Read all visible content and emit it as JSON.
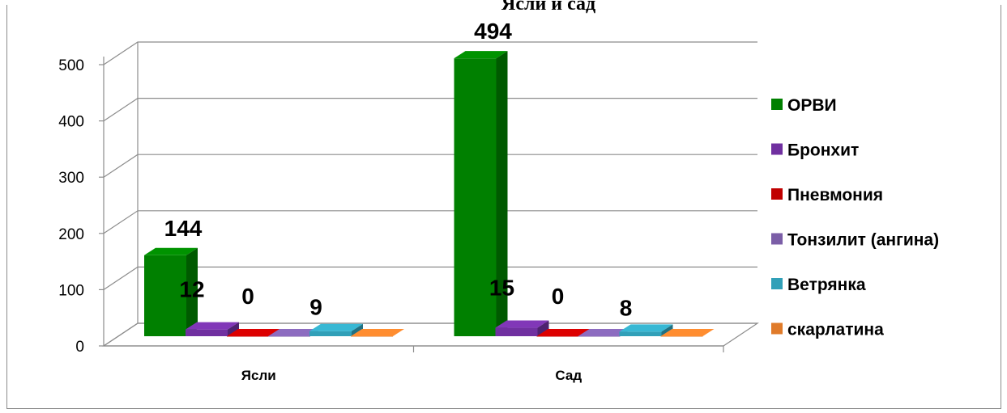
{
  "page": {
    "title_fragment": "Ясли и сад"
  },
  "chart_data": {
    "type": "bar",
    "style": "3d-clustered-column",
    "categories": [
      "Ясли",
      "Сад"
    ],
    "series": [
      {
        "name": "ОРВИ",
        "values": [
          144,
          494
        ],
        "color": "#008000"
      },
      {
        "name": "Бронхит",
        "values": [
          12,
          15
        ],
        "color": "#7030a0"
      },
      {
        "name": "Пневмония",
        "values": [
          0,
          0
        ],
        "color": "#c00000"
      },
      {
        "name": "Тонзилит (ангина)",
        "values": [
          0,
          0
        ],
        "color": "#7b5ea7"
      },
      {
        "name": "Ветрянка",
        "values": [
          9,
          8
        ],
        "color": "#31a0b8"
      },
      {
        "name": "скарлатина",
        "values": [
          0,
          0
        ],
        "color": "#e07b2a"
      }
    ],
    "data_labels": [
      [
        "144",
        "12",
        "0",
        "",
        "9",
        ""
      ],
      [
        "494",
        "15",
        "0",
        "",
        "8",
        ""
      ]
    ],
    "y_ticks": [
      "0",
      "100",
      "200",
      "300",
      "400",
      "500"
    ],
    "ylim": [
      0,
      500
    ],
    "grid": true,
    "legend_position": "right",
    "xlabel": "",
    "ylabel": ""
  }
}
